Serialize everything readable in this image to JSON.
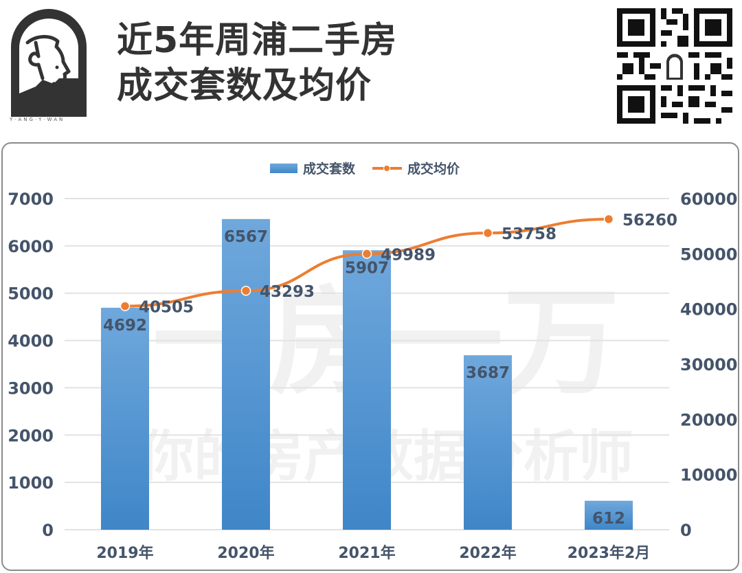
{
  "header": {
    "title_line1": "近5年周浦二手房",
    "title_line2": "成交套数及均价",
    "logo_caption": "Y·ANG·Y·WAN",
    "logo_icon": "person-profile-arch-logo",
    "qr_icon": "qr-code"
  },
  "watermark": {
    "big": "一房一万",
    "small": "你的房产数据分析师"
  },
  "colors": {
    "bar_top": "#6fa8dc",
    "bar_bottom": "#3f86c8",
    "line": "#ed7d31",
    "text": "#44546a",
    "grid": "#e2e2e2"
  },
  "legend": {
    "bar_label": "成交套数",
    "line_label": "成交均价"
  },
  "axes": {
    "left_ticks": [
      "7000",
      "6000",
      "5000",
      "4000",
      "3000",
      "2000",
      "1000",
      "0"
    ],
    "right_ticks": [
      "60000",
      "50000",
      "40000",
      "30000",
      "20000",
      "10000",
      "0"
    ]
  },
  "chart_data": {
    "type": "bar",
    "title": "近5年周浦二手房成交套数及均价",
    "categories": [
      "2019年",
      "2020年",
      "2021年",
      "2022年",
      "2023年2月"
    ],
    "series": [
      {
        "name": "成交套数",
        "type": "bar",
        "axis": "left",
        "values": [
          4692,
          6567,
          5907,
          3687,
          612
        ]
      },
      {
        "name": "成交均价",
        "type": "line",
        "axis": "right",
        "values": [
          40505,
          43293,
          49989,
          53758,
          56260
        ]
      }
    ],
    "xlabel": "",
    "ylabel": "",
    "ylim": [
      0,
      7000
    ],
    "y2lim": [
      0,
      60000
    ],
    "grid": true,
    "legend_position": "top"
  }
}
